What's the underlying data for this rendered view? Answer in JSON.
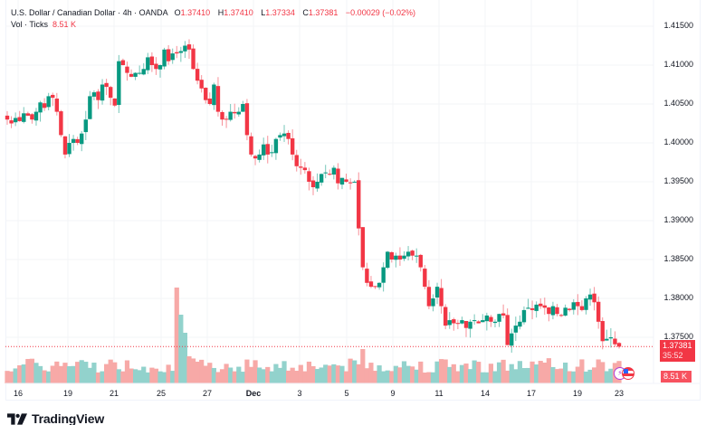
{
  "legend": {
    "symbol_title": "U.S. Dollar / Canadian Dollar",
    "interval": "4h",
    "source": "OANDA",
    "open_label": "O",
    "open": "1.37410",
    "high_label": "H",
    "high": "1.37410",
    "low_label": "L",
    "low": "1.37334",
    "close_label": "C",
    "close": "1.37381",
    "change": "−0.00029 (−0.02%)",
    "volume_label": "Vol · Ticks",
    "volume": "8.51 K"
  },
  "price_axis": {
    "labels": [
      "1.41500",
      "1.41000",
      "1.40500",
      "1.40000",
      "1.39500",
      "1.39000",
      "1.38500",
      "1.38000",
      "1.37500"
    ],
    "last_price": "1.37381",
    "countdown": "35:52",
    "volume_tag": "8.51 K"
  },
  "time_axis": {
    "labels": [
      "16",
      "19",
      "21",
      "25",
      "27",
      "Dec",
      "3",
      "5",
      "9",
      "11",
      "14",
      "17",
      "19",
      "23"
    ]
  },
  "branding": {
    "name": "TradingView"
  },
  "colors": {
    "up": "#089981",
    "down": "#f23645",
    "vol_up": "#92d2cc",
    "vol_down": "#f7a9a7",
    "last_price_tag": "#f23645"
  },
  "chart_data": {
    "type": "candlestick",
    "title": "U.S. Dollar / Canadian Dollar · 4h · OANDA",
    "xlabel": "",
    "ylabel": "Price",
    "ylim": [
      1.372,
      1.417
    ],
    "x_ticks": [
      "16",
      "19",
      "21",
      "25",
      "27",
      "Dec",
      "3",
      "5",
      "9",
      "11",
      "14",
      "17",
      "19",
      "23"
    ],
    "y_ticks": [
      1.415,
      1.41,
      1.405,
      1.4,
      1.395,
      1.39,
      1.385,
      1.38,
      1.375
    ],
    "grid": true,
    "closes": [
      1.403,
      1.4025,
      1.4032,
      1.4028,
      1.4038,
      1.4035,
      1.403,
      1.404,
      1.4052,
      1.4045,
      1.406,
      1.4058,
      1.404,
      1.401,
      1.3985,
      1.4,
      1.4005,
      1.4,
      1.4012,
      1.403,
      1.406,
      1.4065,
      1.4055,
      1.4075,
      1.4072,
      1.4058,
      1.4048,
      1.4105,
      1.41,
      1.409,
      1.4085,
      1.409,
      1.409,
      1.4095,
      1.411,
      1.41,
      1.4095,
      1.41,
      1.412,
      1.4105,
      1.4115,
      1.4115,
      1.4118,
      1.4125,
      1.412,
      1.4095,
      1.408,
      1.407,
      1.4055,
      1.405,
      1.4075,
      1.404,
      1.403,
      1.403,
      1.404,
      1.4038,
      1.404,
      1.405,
      1.401,
      1.3985,
      1.398,
      1.3985,
      1.3998,
      1.3985,
      1.3988,
      1.4005,
      1.401,
      1.4012,
      1.4005,
      1.3985,
      1.397,
      1.3968,
      1.3965,
      1.395,
      1.3943,
      1.395,
      1.396,
      1.3962,
      1.396,
      1.3968,
      1.3948,
      1.3955,
      1.395,
      1.3948,
      1.395,
      1.389,
      1.384,
      1.382,
      1.3815,
      1.3815,
      1.382,
      1.384,
      1.386,
      1.385,
      1.3855,
      1.385,
      1.3855,
      1.386,
      1.3855,
      1.3855,
      1.384,
      1.3815,
      1.379,
      1.38,
      1.3815,
      1.379,
      1.3765,
      1.3772,
      1.3768,
      1.3768,
      1.3772,
      1.3762,
      1.377,
      1.3772,
      1.3768,
      1.3772,
      1.3778,
      1.377,
      1.377,
      1.378,
      1.3778,
      1.374,
      1.3755,
      1.3765,
      1.377,
      1.3785,
      1.3788,
      1.3785,
      1.3792,
      1.379,
      1.3788,
      1.378,
      1.379,
      1.378,
      1.3778,
      1.3788,
      1.3785,
      1.3795,
      1.379,
      1.3785,
      1.38,
      1.3805,
      1.3795,
      1.377,
      1.3745,
      1.3748,
      1.375,
      1.3741,
      1.3738
    ],
    "volume_peak_note": "volume spike near Nov 28–29"
  }
}
